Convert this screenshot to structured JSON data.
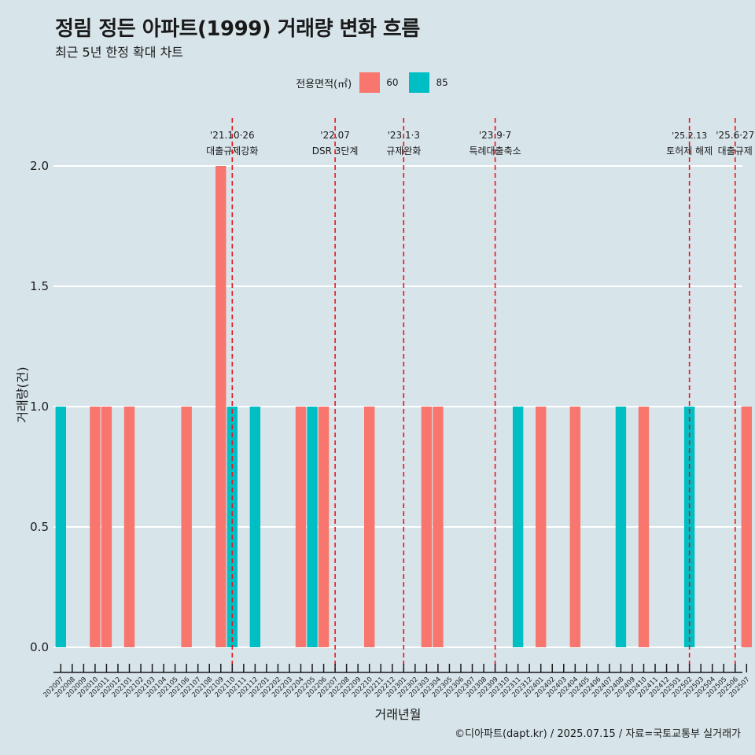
{
  "title": "정림 정든 아파트(1999) 거래량 변화 흐름",
  "subtitle": "최근 5년 한정 확대 차트",
  "caption": "©디아파트(dapt.kr) / 2025.07.15 / 자료=국토교통부 실거래가",
  "legend": {
    "title": "전용면적(㎡)",
    "items": [
      {
        "label": "60",
        "color": "#f8766d"
      },
      {
        "label": "85",
        "color": "#00bfc4"
      }
    ]
  },
  "chart_data": {
    "type": "bar",
    "xlabel": "거래년월",
    "ylabel": "거래량(건)",
    "ylim": [
      0,
      2.1
    ],
    "yticks": [
      "0.0",
      "0.5",
      "1.0",
      "1.5",
      "2.0"
    ],
    "grid": true,
    "legend_position": "top",
    "categories": [
      "202007",
      "202008",
      "202009",
      "202010",
      "202011",
      "202012",
      "202101",
      "202102",
      "202103",
      "202104",
      "202105",
      "202106",
      "202107",
      "202108",
      "202109",
      "202110",
      "202111",
      "202112",
      "202201",
      "202202",
      "202203",
      "202204",
      "202205",
      "202206",
      "202207",
      "202208",
      "202209",
      "202210",
      "202211",
      "202212",
      "202301",
      "202302",
      "202303",
      "202304",
      "202305",
      "202306",
      "202307",
      "202308",
      "202309",
      "202310",
      "202311",
      "202312",
      "202401",
      "202402",
      "202403",
      "202404",
      "202405",
      "202406",
      "202407",
      "202408",
      "202409",
      "202410",
      "202411",
      "202412",
      "202501",
      "202502",
      "202503",
      "202504",
      "202505",
      "202506",
      "202507"
    ],
    "series": [
      {
        "name": "60",
        "color": "#f8766d",
        "values": [
          0,
          0,
          0,
          1,
          1,
          0,
          1,
          0,
          0,
          0,
          0,
          1,
          0,
          0,
          2,
          0,
          0,
          0,
          0,
          0,
          0,
          1,
          0,
          1,
          0,
          0,
          0,
          1,
          0,
          0,
          0,
          0,
          1,
          1,
          0,
          0,
          0,
          0,
          0,
          0,
          0,
          0,
          1,
          0,
          0,
          1,
          0,
          0,
          0,
          0,
          0,
          1,
          0,
          0,
          0,
          0,
          0,
          0,
          0,
          0,
          1
        ]
      },
      {
        "name": "85",
        "color": "#00bfc4",
        "values": [
          1,
          0,
          0,
          0,
          0,
          0,
          0,
          0,
          0,
          0,
          0,
          0,
          0,
          0,
          0,
          1,
          0,
          1,
          0,
          0,
          0,
          0,
          1,
          0,
          0,
          0,
          0,
          0,
          0,
          0,
          0,
          0,
          0,
          0,
          0,
          0,
          0,
          0,
          0,
          0,
          1,
          0,
          0,
          0,
          0,
          0,
          0,
          0,
          0,
          1,
          0,
          0,
          0,
          0,
          0,
          1,
          0,
          0,
          0,
          0,
          0
        ]
      }
    ],
    "events": [
      {
        "date": "'21.10·26",
        "label": "대출규제강화",
        "month": "202110"
      },
      {
        "date": "'22.07",
        "label": "DSR 3단계",
        "month": "202207"
      },
      {
        "date": "'23.1·3",
        "label": "규제완화",
        "month": "202301"
      },
      {
        "date": "'23.9·7",
        "label": "특례대출축소",
        "month": "202309"
      },
      {
        "date": "'25.2.13",
        "label": "토허제 해제",
        "month": "202502"
      },
      {
        "date": "'25.6·27",
        "label": "대출규제",
        "month": "202506"
      }
    ],
    "event_line_color": "#e8141b"
  }
}
